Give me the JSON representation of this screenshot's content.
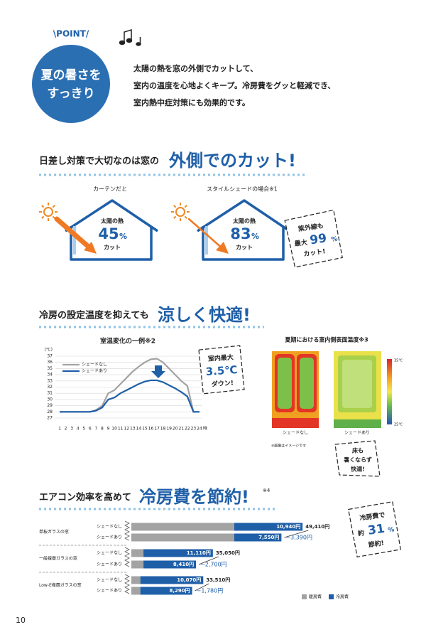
{
  "point": {
    "label": "\\POINT/",
    "badge": [
      "夏の暑さを",
      "すっきり"
    ]
  },
  "intro": [
    "太陽の熱を窓の外側でカットして、",
    "室内の温度を心地よくキープ。冷房費をグッと軽減でき、",
    "室内熱中症対策にも効果的です。"
  ],
  "section1": {
    "lead": "日差し対策で大切なのは窓の",
    "headline": "外側でのカット!",
    "cases": [
      {
        "label": "カーテンだと",
        "heat": "太陽の熱",
        "percent": 45,
        "unit": "%",
        "cut": "カット"
      },
      {
        "label": "スタイルシェードの場合※1",
        "heat": "太陽の熱",
        "percent": 83,
        "unit": "%",
        "cut": "カット"
      }
    ],
    "callout": [
      "紫外線も",
      "最大",
      "99",
      "%",
      "カット!"
    ]
  },
  "section2": {
    "lead": "冷房の設定温度を抑えても",
    "headline": "涼しく快適!",
    "chart_data": {
      "type": "line",
      "title": "室温変化の一例※2",
      "y_unit": "(℃)",
      "x_unit": "時",
      "x": [
        1,
        2,
        3,
        4,
        5,
        6,
        7,
        8,
        9,
        10,
        11,
        12,
        13,
        14,
        15,
        16,
        17,
        18,
        19,
        20,
        21,
        22,
        23,
        24
      ],
      "xlim": [
        1,
        24
      ],
      "xticks": [
        1,
        2,
        3,
        4,
        5,
        6,
        7,
        8,
        9,
        10,
        11,
        12,
        13,
        14,
        15,
        16,
        17,
        18,
        19,
        20,
        21,
        22,
        23,
        24
      ],
      "ylim": [
        27,
        37
      ],
      "yticks": [
        27,
        28,
        29,
        30,
        31,
        32,
        33,
        34,
        35,
        36,
        37
      ],
      "grid": true,
      "series": [
        {
          "name": "シェードなし",
          "color": "#a3a3a3",
          "values": [
            28,
            28,
            28,
            28,
            28,
            28,
            28.3,
            29,
            31,
            31.5,
            32.5,
            33.5,
            34.5,
            35.3,
            36,
            36.5,
            36.6,
            36,
            35,
            34,
            33,
            32.2,
            28,
            28
          ]
        },
        {
          "name": "シェードあり",
          "color": "#1f5fa8",
          "values": [
            28,
            28,
            28,
            28,
            28,
            28,
            28.2,
            28.7,
            30,
            30.3,
            31,
            31.5,
            32,
            32.5,
            32.9,
            33.1,
            33.1,
            32.8,
            32.3,
            31.8,
            31.2,
            30.5,
            28,
            28
          ]
        }
      ]
    },
    "callout": [
      "室内最大",
      "3.5℃",
      "ダウン!"
    ],
    "thermal": {
      "title": "夏期における室内側表面温度※3",
      "labels": [
        "シェードなし",
        "シェードあり"
      ],
      "scale": [
        "35℃",
        "25℃"
      ],
      "note": "※画像はイメージです"
    },
    "callout2": [
      "床も",
      "暑くならず",
      "快適!"
    ]
  },
  "section3": {
    "lead": "エアコン効率を高めて",
    "headline": "冷房費を節約!",
    "footnote": "※4",
    "chart_data": {
      "type": "bar",
      "groups": [
        "単板ガラスの窓",
        "一般複層ガラスの窓",
        "Low-E複層ガラスの窓"
      ],
      "rows": [
        "シェードなし",
        "シェードあり"
      ],
      "total_none": [
        49410,
        35050,
        33510
      ],
      "total_none_labels": [
        "49,410円",
        "35,050円",
        "33,510円"
      ],
      "cooling_none": [
        10940,
        11110,
        10070
      ],
      "cooling_none_labels": [
        "10,940円",
        "11,110円",
        "10,070円"
      ],
      "cooling_shade": [
        7550,
        8410,
        8290
      ],
      "cooling_shade_labels": [
        "7,550円",
        "8,410円",
        "8,290円"
      ],
      "reduction": [
        -3390,
        -2700,
        -1780
      ],
      "reduction_labels": [
        "−3,390円",
        "−2,700円",
        "−1,780円"
      ],
      "legend": [
        {
          "name": "暖房費",
          "color": "#a3a3a3"
        },
        {
          "name": "冷房費",
          "color": "#1f5fa8"
        }
      ]
    },
    "callout": [
      "冷房費で",
      "約",
      "31",
      "%",
      "節約!"
    ]
  },
  "page": "10"
}
